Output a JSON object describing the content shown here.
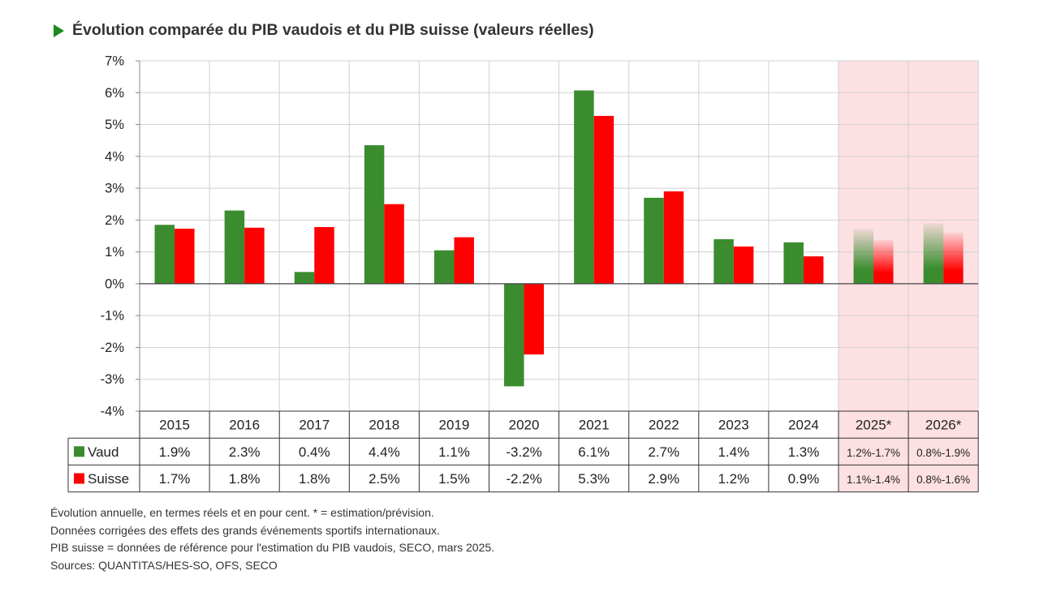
{
  "title": "Évolution comparée du PIB vaudois et du PIB suisse (valeurs réelles)",
  "title_icon": "play-triangle-icon",
  "chart_data": {
    "type": "bar",
    "title": "Évolution comparée du PIB vaudois et du PIB suisse (valeurs réelles)",
    "categories": [
      "2015",
      "2016",
      "2017",
      "2018",
      "2019",
      "2020",
      "2021",
      "2022",
      "2023",
      "2024",
      "2025*",
      "2026*"
    ],
    "y_tick_labels": [
      "7%",
      "6%",
      "5%",
      "4%",
      "3%",
      "2%",
      "1%",
      "0%",
      "-1%",
      "-2%",
      "-3%",
      "-4%"
    ],
    "ylim": [
      -4,
      7
    ],
    "grid": true,
    "legend": "data-table-left",
    "forecast_categories": [
      "2025*",
      "2026*"
    ],
    "series": [
      {
        "name": "Vaud",
        "color": "#3a8c2f",
        "values": [
          1.85,
          2.3,
          0.37,
          4.35,
          1.05,
          -3.22,
          6.07,
          2.7,
          1.4,
          1.3,
          1.72,
          1.9
        ],
        "table_labels": [
          "1.9%",
          "2.3%",
          "0.4%",
          "4.4%",
          "1.1%",
          "-3.2%",
          "6.1%",
          "2.7%",
          "1.4%",
          "1.3%",
          "1.2%-1.7%",
          "0.8%-1.9%"
        ]
      },
      {
        "name": "Suisse",
        "color": "#ff0000",
        "values": [
          1.73,
          1.76,
          1.78,
          2.5,
          1.46,
          -2.22,
          5.27,
          2.9,
          1.17,
          0.86,
          1.37,
          1.6
        ],
        "table_labels": [
          "1.7%",
          "1.8%",
          "1.8%",
          "2.5%",
          "1.5%",
          "-2.2%",
          "5.3%",
          "2.9%",
          "1.2%",
          "0.9%",
          "1.1%-1.4%",
          "0.8%-1.6%"
        ]
      }
    ],
    "forecast_shading_color": "#fde0e2"
  },
  "notes": [
    "Évolution annuelle, en termes réels et en pour cent. * = estimation/prévision.",
    "Données corrigées des effets des grands événements sportifs internationaux.",
    "PIB suisse = données de référence pour l'estimation du PIB vaudois, SECO, mars 2025.",
    "Sources: QUANTITAS/HES-SO, OFS, SECO"
  ]
}
